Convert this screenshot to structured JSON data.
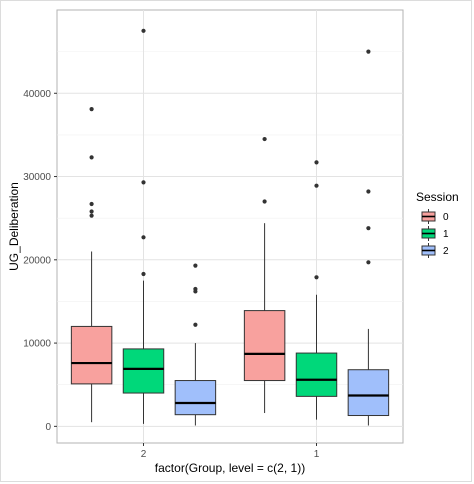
{
  "chart_data": {
    "type": "boxplot",
    "xlabel": "factor(Group, level = c(2, 1))",
    "ylabel": "UG_Deliberation",
    "categories": [
      "2",
      "1"
    ],
    "ylim": [
      -2000,
      50000
    ],
    "y_ticks": [
      0,
      10000,
      20000,
      30000,
      40000
    ],
    "y_tick_labels": [
      "0",
      "10000",
      "20000",
      "30000",
      "40000"
    ],
    "grid": true,
    "legend": {
      "title": "Session",
      "placement": "right",
      "entries": [
        "0",
        "1",
        "2"
      ]
    },
    "series": [
      {
        "name": "0",
        "color": "#F8A19E",
        "boxes": [
          {
            "category": "2",
            "whisker_low": 500,
            "q1": 5100,
            "median": 7600,
            "q3": 12000,
            "whisker_high": 21000,
            "outliers": [
              25300,
              25800,
              26700,
              32300,
              38100
            ]
          },
          {
            "category": "1",
            "whisker_low": 1600,
            "q1": 5500,
            "median": 8700,
            "q3": 13900,
            "whisker_high": 24400,
            "outliers": [
              27000,
              34500
            ]
          }
        ]
      },
      {
        "name": "1",
        "color": "#00D87A",
        "boxes": [
          {
            "category": "2",
            "whisker_low": 300,
            "q1": 4000,
            "median": 6900,
            "q3": 9300,
            "whisker_high": 17500,
            "outliers": [
              18300,
              22700,
              29300,
              47500
            ]
          },
          {
            "category": "1",
            "whisker_low": 800,
            "q1": 3600,
            "median": 5600,
            "q3": 8800,
            "whisker_high": 15800,
            "outliers": [
              17900,
              28900,
              31700
            ]
          }
        ]
      },
      {
        "name": "2",
        "color": "#A0BFFB",
        "boxes": [
          {
            "category": "2",
            "whisker_low": 100,
            "q1": 1400,
            "median": 2800,
            "q3": 5500,
            "whisker_high": 10000,
            "outliers": [
              12200,
              16200,
              16500,
              19300
            ]
          },
          {
            "category": "1",
            "whisker_low": 100,
            "q1": 1300,
            "median": 3700,
            "q3": 6800,
            "whisker_high": 11700,
            "outliers": [
              19700,
              23800,
              28200,
              45000
            ]
          }
        ]
      }
    ]
  }
}
